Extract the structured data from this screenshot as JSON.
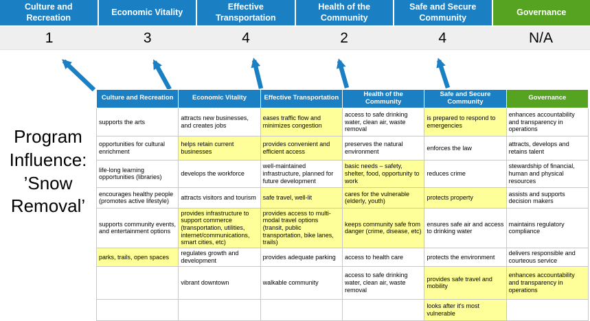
{
  "title": "Program Influence: ’Snow Removal’",
  "colors": {
    "pillar_blue": "#1b7fc4",
    "pillar_green": "#56a322",
    "highlight_yellow": "#ffff99",
    "score_band_gray": "#efefef",
    "arrow_blue": "#1b7fc4"
  },
  "scoreboard": {
    "columns": [
      {
        "label": "Culture and Recreation",
        "score": "1",
        "color": "blue"
      },
      {
        "label": "Economic Vitality",
        "score": "3",
        "color": "blue"
      },
      {
        "label": "Effective Transportation",
        "score": "4",
        "color": "blue"
      },
      {
        "label": "Health of the Community",
        "score": "2",
        "color": "blue"
      },
      {
        "label": "Safe and Secure Community",
        "score": "4",
        "color": "blue"
      },
      {
        "label": "Governance",
        "score": "N/A",
        "color": "green"
      }
    ]
  },
  "matrix": {
    "headers": [
      {
        "label": "Culture and Recreation",
        "color": "blue"
      },
      {
        "label": "Economic Vitality",
        "color": "blue"
      },
      {
        "label": "Effective Transportation",
        "color": "blue"
      },
      {
        "label": "Health of the Community",
        "color": "blue"
      },
      {
        "label": "Safe and Secure Community",
        "color": "blue"
      },
      {
        "label": "Governance",
        "color": "green"
      }
    ],
    "rows": [
      [
        {
          "text": "supports the arts",
          "highlight": false
        },
        {
          "text": "attracts new businesses, and creates jobs",
          "highlight": false
        },
        {
          "text": "eases traffic flow and minimizes congestion",
          "highlight": true
        },
        {
          "text": "access to safe drinking water, clean air, waste removal",
          "highlight": false
        },
        {
          "text": "is prepared to respond to emergencies",
          "highlight": true
        },
        {
          "text": "enhances accountability and transparency in operations",
          "highlight": false
        }
      ],
      [
        {
          "text": "opportunities for cultural enrichment",
          "highlight": false
        },
        {
          "text": "helps retain current businesses",
          "highlight": true
        },
        {
          "text": "provides convenient and efficient access",
          "highlight": true
        },
        {
          "text": "preserves the natural environment",
          "highlight": false
        },
        {
          "text": "enforces the law",
          "highlight": false
        },
        {
          "text": "attracts, develops and retains talent",
          "highlight": false
        }
      ],
      [
        {
          "text": "life-long learning opportunities (libraries)",
          "highlight": false
        },
        {
          "text": "develops the workforce",
          "highlight": false
        },
        {
          "text": "well-maintained infrastructure, planned for future development",
          "highlight": false
        },
        {
          "text": "basic needs – safety, shelter, food, opportunity to work",
          "highlight": true
        },
        {
          "text": "reduces crime",
          "highlight": false
        },
        {
          "text": "stewardship of financial, human and physical resources",
          "highlight": false
        }
      ],
      [
        {
          "text": "encourages healthy people (promotes active lifestyle)",
          "highlight": false
        },
        {
          "text": "attracts visitors and tourism",
          "highlight": false
        },
        {
          "text": "safe travel, well-lit",
          "highlight": true
        },
        {
          "text": "cares for the vulnerable (elderly, youth)",
          "highlight": true
        },
        {
          "text": "protects property",
          "highlight": true
        },
        {
          "text": "assists and supports decision makers",
          "highlight": false
        }
      ],
      [
        {
          "text": "supports community events, and entertainment options",
          "highlight": false
        },
        {
          "text": "provides infrastructure to support commerce (transportation, utilities, internet/communications, smart cities, etc)",
          "highlight": true
        },
        {
          "text": "provides access to multi-modal travel options (transit, public transportation, bike lanes, trails)",
          "highlight": true
        },
        {
          "text": "keeps community safe from danger (crime, disease, etc)",
          "highlight": true
        },
        {
          "text": "ensures safe air and access to drinking water",
          "highlight": false
        },
        {
          "text": "maintains regulatory compliance",
          "highlight": false
        }
      ],
      [
        {
          "text": "parks, trails, open spaces",
          "highlight": true
        },
        {
          "text": "regulates growth and development",
          "highlight": false
        },
        {
          "text": "provides adequate parking",
          "highlight": false
        },
        {
          "text": "access to health care",
          "highlight": false
        },
        {
          "text": "protects the environment",
          "highlight": false
        },
        {
          "text": "delivers responsible and courteous service",
          "highlight": false
        }
      ],
      [
        {
          "text": "",
          "highlight": false
        },
        {
          "text": "vibrant downtown",
          "highlight": false
        },
        {
          "text": "walkable community",
          "highlight": false
        },
        {
          "text": "access to safe drinking water, clean air, waste removal",
          "highlight": false
        },
        {
          "text": "provides safe travel and mobility",
          "highlight": true
        },
        {
          "text": "enhances accountability and transparency in operations",
          "highlight": true
        }
      ],
      [
        {
          "text": "",
          "highlight": false
        },
        {
          "text": "",
          "highlight": false
        },
        {
          "text": "",
          "highlight": false
        },
        {
          "text": "",
          "highlight": false
        },
        {
          "text": "looks after it's most vulnerable",
          "highlight": true
        },
        {
          "text": "",
          "highlight": false
        }
      ]
    ]
  }
}
